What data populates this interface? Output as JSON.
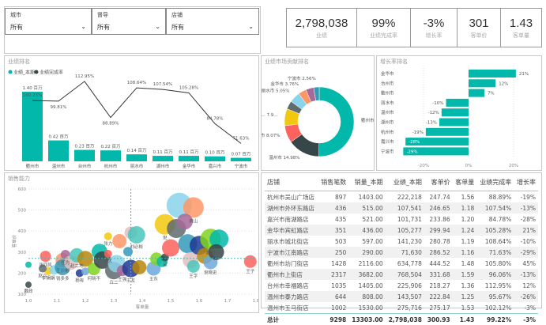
{
  "slicers": [
    {
      "label": "城市",
      "value": "所有"
    },
    {
      "label": "督导",
      "value": "所有"
    },
    {
      "label": "店铺",
      "value": "所有"
    }
  ],
  "kpis": [
    {
      "value": "2,798,038",
      "label": "业绩"
    },
    {
      "value": "99%",
      "label": "业绩完成率"
    },
    {
      "value": "-3%",
      "label": "增长率"
    },
    {
      "value": "301",
      "label": "客单价"
    },
    {
      "value": "1.43",
      "label": "客单量"
    }
  ],
  "colors": {
    "teal": "#01B8AA",
    "dark": "#374649"
  },
  "chart_data": [
    {
      "type": "bar",
      "title": "业绩排名",
      "legend": [
        "业绩_本期",
        "业绩完成率"
      ],
      "legend_placement": "top-left",
      "categories": [
        "衢州市",
        "温州市",
        "台州市",
        "杭州市",
        "丽水市",
        "湖州市",
        "金华市",
        "嘉兴市",
        "宁波市"
      ],
      "series": [
        {
          "name": "业绩_本期",
          "values": [
            1.4,
            0.42,
            0.23,
            0.22,
            0.14,
            0.11,
            0.11,
            0.1,
            0.07
          ],
          "labels": [
            "1.40 百万",
            "0.42 百万",
            "0.23 百万",
            "0.22 百万",
            "0.14 百万",
            "0.11 百万",
            "0.11 百万",
            "0.10 百万",
            "0.07 百万"
          ]
        },
        {
          "name": "业绩完成率",
          "type": "line",
          "values": [
            100.23,
            99.81,
            112.95,
            88.89,
            108.64,
            107.54,
            105.28,
            84.78,
            71.63
          ],
          "labels": [
            "100.23%",
            "99.81%",
            "112.95%",
            "88.89%",
            "108.64%",
            "107.54%",
            "105.28%",
            "84.78%",
            "71.63%"
          ]
        }
      ]
    },
    {
      "type": "pie",
      "title": "业绩市场贡献排名",
      "donut": true,
      "slices": [
        {
          "name": "衢州市",
          "value": 50.15,
          "label": "衢州市 50.15%",
          "color": "#01B8AA"
        },
        {
          "name": "温州市",
          "value": 14.98,
          "label": "温州市 14.98%",
          "color": "#374649"
        },
        {
          "name": "台州市",
          "value": 8.07,
          "label": "台州市 8.07%",
          "color": "#FD625E"
        },
        {
          "name": "杭州市",
          "value": 7.9,
          "label": "杭... 7.9...",
          "color": "#F2C80F"
        },
        {
          "name": "湖州市",
          "value": 3.84,
          "label": "",
          "color": "#5F6B6D"
        },
        {
          "name": "丽水市",
          "value": 5.05,
          "label": "丽水市 5.05%",
          "color": "#8AD4EB"
        },
        {
          "name": "金华市",
          "value": 3.76,
          "label": "金华市 3.76%",
          "color": "#FE9666"
        },
        {
          "name": "嘉兴市",
          "value": 3.69,
          "label": "",
          "color": "#A66999"
        },
        {
          "name": "宁波市",
          "value": 2.56,
          "label": "宁波市 2.56%",
          "color": "#3599B8"
        }
      ]
    },
    {
      "type": "bar",
      "orientation": "horizontal",
      "title": "增长率排名",
      "categories": [
        "金华市",
        "台州市",
        "衢州市",
        "丽水市",
        "温州市",
        "湖州市",
        "杭州市",
        "嘉兴市",
        "宁波市"
      ],
      "values": [
        21,
        12,
        7,
        -10,
        -12,
        -13,
        -19,
        -28,
        -29
      ],
      "labels": [
        "21%",
        "12%",
        "7%",
        "-10%",
        "-12%",
        "-13%",
        "-19%",
        "-28%",
        "-29%"
      ],
      "xticks": [
        "-20%",
        "0%",
        "20%"
      ],
      "xlim": [
        -35,
        35
      ]
    },
    {
      "type": "scatter",
      "title": "销售能力",
      "xlabel": "客单量",
      "ylabel": "客单价",
      "xlim": [
        1.0,
        1.8
      ],
      "ylim": [
        100,
        600
      ],
      "xticks": [
        "1.0",
        "1.1",
        "1.2",
        "1.3",
        "1.4",
        "1.5",
        "1.6",
        "1.7",
        "1.8"
      ],
      "yticks": [
        "100",
        "200",
        "300",
        "400",
        "500",
        "600"
      ],
      "reference": {
        "x": 1.36,
        "y": 270
      },
      "points": [
        [
          1.0,
          240,
          "",
          4
        ],
        [
          1.0,
          145,
          "戴政",
          4
        ],
        [
          1.06,
          280,
          "张四风",
          7
        ],
        [
          1.07,
          210,
          "李娟娟",
          5
        ],
        [
          1.05,
          222,
          "赵六",
          5
        ],
        [
          1.09,
          215,
          "",
          6
        ],
        [
          1.12,
          262,
          "王沙彬",
          9
        ],
        [
          1.13,
          288,
          "任为",
          6
        ],
        [
          1.12,
          228,
          "钱多多",
          10
        ],
        [
          1.15,
          250,
          "",
          9
        ],
        [
          1.17,
          285,
          "赵二地",
          9
        ],
        [
          1.18,
          200,
          "杨有",
          5
        ],
        [
          1.2,
          268,
          "",
          10
        ],
        [
          1.2,
          208,
          "",
          5
        ],
        [
          1.23,
          220,
          "何晓不",
          8
        ],
        [
          1.25,
          302,
          "",
          10
        ],
        [
          1.26,
          262,
          "",
          11
        ],
        [
          1.28,
          292,
          "胡大",
          5
        ],
        [
          1.28,
          375,
          "张力",
          5
        ],
        [
          1.3,
          212,
          "丘二",
          11
        ],
        [
          1.31,
          245,
          "",
          11
        ],
        [
          1.32,
          352,
          "",
          9
        ],
        [
          1.33,
          212,
          "王强",
          7
        ],
        [
          1.35,
          302,
          "",
          6
        ],
        [
          1.36,
          392,
          "",
          8
        ],
        [
          1.38,
          382,
          "刘必彬",
          11
        ],
        [
          1.36,
          222,
          "王友",
          11
        ],
        [
          1.39,
          228,
          "",
          9
        ],
        [
          1.44,
          222,
          "王东",
          9
        ],
        [
          1.45,
          268,
          "",
          8
        ],
        [
          1.47,
          255,
          "",
          7
        ],
        [
          1.48,
          275,
          "吴",
          5
        ],
        [
          1.5,
          320,
          "",
          11
        ],
        [
          1.48,
          432,
          "倪",
          13
        ],
        [
          1.52,
          412,
          "",
          12
        ],
        [
          1.53,
          522,
          "",
          16
        ],
        [
          1.58,
          512,
          "龚山",
          13
        ],
        [
          1.55,
          445,
          "",
          10
        ],
        [
          1.56,
          340,
          "",
          12
        ],
        [
          1.57,
          262,
          "",
          10
        ],
        [
          1.58,
          232,
          "王字",
          8
        ],
        [
          1.6,
          332,
          "",
          12
        ],
        [
          1.62,
          282,
          "",
          10
        ],
        [
          1.64,
          252,
          "倪晓史",
          9
        ],
        [
          1.64,
          362,
          "赵四",
          13
        ],
        [
          1.67,
          362,
          "",
          12
        ],
        [
          1.66,
          300,
          "",
          10
        ],
        [
          1.78,
          255,
          "王子",
          8
        ]
      ]
    }
  ],
  "table": {
    "headers": [
      "店铺",
      "销售笔数",
      "销量_本期",
      "业绩_本期",
      "客单价",
      "客单量",
      "业绩完成率",
      "增长率"
    ],
    "rows": [
      [
        "杭州市吴山广场店",
        "897",
        "1403.00",
        "222,218",
        "247.74",
        "1.56",
        "88.89%",
        "-19%"
      ],
      [
        "湖州市外环东路店",
        "436",
        "515.00",
        "107,541",
        "246.65",
        "1.18",
        "107.54%",
        "-13%"
      ],
      [
        "嘉兴市南湖路店",
        "435",
        "521.00",
        "101,731",
        "233.86",
        "1.20",
        "84.78%",
        "-28%"
      ],
      [
        "金华市宾虹路店",
        "351",
        "436.00",
        "105,277",
        "299.94",
        "1.24",
        "105.28%",
        "21%"
      ],
      [
        "丽水市城北街店",
        "503",
        "597.00",
        "141,230",
        "280.78",
        "1.19",
        "108.64%",
        "-10%"
      ],
      [
        "宁波市江南路店",
        "250",
        "290.00",
        "71,630",
        "286.52",
        "1.16",
        "71.63%",
        "-29%"
      ],
      [
        "衢州市坊门街店",
        "1428",
        "2116.00",
        "634,778",
        "444.52",
        "1.48",
        "105.80%",
        "45%"
      ],
      [
        "衢州市上街店",
        "2317",
        "3682.00",
        "768,504",
        "331.68",
        "1.59",
        "96.06%",
        "-13%"
      ],
      [
        "台州市幸福路店",
        "1035",
        "1405.00",
        "225,906",
        "218.27",
        "1.36",
        "112.95%",
        "12%"
      ],
      [
        "温州市泰力路店",
        "644",
        "808.00",
        "143,507",
        "222.84",
        "1.25",
        "95.67%",
        "-26%"
      ],
      [
        "温州市五马街店",
        "1002",
        "1530.00",
        "275,716",
        "275.17",
        "1.53",
        "102.12%",
        "-3%"
      ]
    ],
    "total": [
      "总计",
      "9298",
      "13303.00",
      "2,798,038",
      "300.93",
      "1.43",
      "99.22%",
      "-3%"
    ]
  }
}
